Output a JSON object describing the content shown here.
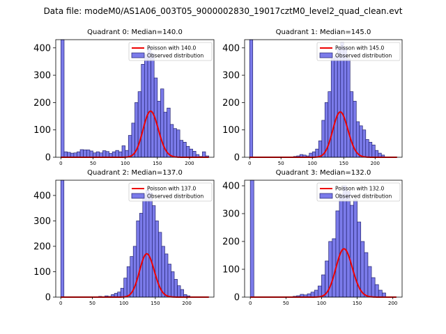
{
  "suptitle": "Data file: modeM0/AS1A06_003T05_9000002830_19017cztM0_level2_quad_clean.evt",
  "colors": {
    "bar_fill": "#7b7bea",
    "bar_edge": "#22226e",
    "poisson_line": "#ee0000"
  },
  "chart_data": [
    {
      "type": "bar",
      "title": "Quadrant 0: Median=140.0",
      "median": 140,
      "legend": {
        "line_label": "Poisson with 140.0",
        "bar_label": "Observed distribution",
        "placement": "upper right"
      },
      "xlim": [
        -8,
        238
      ],
      "ylim": [
        0,
        430
      ],
      "xticks": [
        0,
        50,
        100,
        150,
        200
      ],
      "yticks": [
        0,
        100,
        200,
        300,
        400
      ],
      "bin_width": 5,
      "bins_start": [
        0,
        5,
        10,
        15,
        20,
        25,
        30,
        35,
        40,
        45,
        50,
        55,
        60,
        65,
        70,
        75,
        80,
        85,
        90,
        95,
        100,
        105,
        110,
        115,
        120,
        125,
        130,
        135,
        140,
        145,
        150,
        155,
        160,
        165,
        170,
        175,
        180,
        185,
        190,
        195,
        200,
        205,
        210,
        215,
        220,
        225
      ],
      "counts": [
        430,
        20,
        18,
        15,
        16,
        20,
        28,
        27,
        27,
        23,
        16,
        20,
        16,
        24,
        21,
        14,
        20,
        25,
        20,
        42,
        25,
        80,
        125,
        200,
        240,
        340,
        375,
        400,
        380,
        290,
        205,
        250,
        165,
        180,
        120,
        105,
        100,
        62,
        55,
        40,
        30,
        22,
        10,
        3,
        20,
        5
      ],
      "poisson_lambda": 140,
      "poisson_scale": 5000
    },
    {
      "type": "bar",
      "title": "Quadrant 1: Median=145.0",
      "median": 145,
      "legend": {
        "line_label": "Poisson with 145.0",
        "bar_label": "Observed distribution",
        "placement": "upper right"
      },
      "xlim": [
        -8,
        243
      ],
      "ylim": [
        0,
        430
      ],
      "xticks": [
        0,
        50,
        100,
        150,
        200
      ],
      "yticks": [
        0,
        100,
        200,
        300,
        400
      ],
      "bin_width": 5,
      "bins_start": [
        0,
        70,
        75,
        80,
        85,
        90,
        95,
        100,
        105,
        110,
        115,
        120,
        125,
        130,
        135,
        140,
        145,
        150,
        155,
        160,
        165,
        170,
        175,
        180,
        185,
        190,
        195,
        200,
        205,
        210
      ],
      "counts": [
        430,
        3,
        5,
        10,
        8,
        5,
        15,
        20,
        30,
        60,
        135,
        200,
        240,
        360,
        370,
        400,
        420,
        400,
        360,
        240,
        205,
        130,
        115,
        100,
        65,
        55,
        45,
        25,
        15,
        8
      ],
      "poisson_lambda": 145,
      "poisson_scale": 5000
    },
    {
      "type": "bar",
      "title": "Quadrant 2: Median=137.0",
      "median": 137,
      "legend": {
        "line_label": "Poisson with 137.0",
        "bar_label": "Observed distribution",
        "placement": "upper right"
      },
      "xlim": [
        -8,
        243
      ],
      "ylim": [
        0,
        460
      ],
      "xticks": [
        0,
        50,
        100,
        150,
        200
      ],
      "yticks": [
        0,
        100,
        200,
        300,
        400
      ],
      "bin_width": 5,
      "bins_start": [
        0,
        60,
        65,
        70,
        75,
        80,
        85,
        90,
        95,
        100,
        105,
        110,
        115,
        120,
        125,
        130,
        135,
        140,
        145,
        150,
        155,
        160,
        165,
        170,
        175,
        180,
        185,
        190,
        195,
        200
      ],
      "counts": [
        460,
        3,
        2,
        5,
        3,
        10,
        15,
        20,
        35,
        75,
        120,
        160,
        200,
        300,
        330,
        400,
        420,
        410,
        360,
        300,
        255,
        200,
        170,
        130,
        100,
        70,
        45,
        30,
        10,
        5
      ],
      "poisson_lambda": 137,
      "poisson_scale": 5000
    },
    {
      "type": "bar",
      "title": "Quadrant 3: Median=132.0",
      "median": 132,
      "legend": {
        "line_label": "Poisson with 132.0",
        "bar_label": "Observed distribution",
        "placement": "upper right"
      },
      "xlim": [
        -8,
        213
      ],
      "ylim": [
        0,
        420
      ],
      "xticks": [
        0,
        50,
        100,
        150,
        200
      ],
      "yticks": [
        0,
        100,
        200,
        300,
        400
      ],
      "bin_width": 5,
      "bins_start": [
        0,
        60,
        65,
        70,
        75,
        80,
        85,
        90,
        95,
        100,
        105,
        110,
        115,
        120,
        125,
        130,
        135,
        140,
        145,
        150,
        155,
        160,
        165,
        170,
        175,
        180,
        185
      ],
      "counts": [
        420,
        3,
        5,
        10,
        8,
        12,
        18,
        25,
        40,
        80,
        130,
        200,
        210,
        310,
        370,
        400,
        380,
        330,
        350,
        270,
        200,
        160,
        110,
        70,
        45,
        25,
        15
      ],
      "poisson_lambda": 132,
      "poisson_scale": 5000
    }
  ]
}
